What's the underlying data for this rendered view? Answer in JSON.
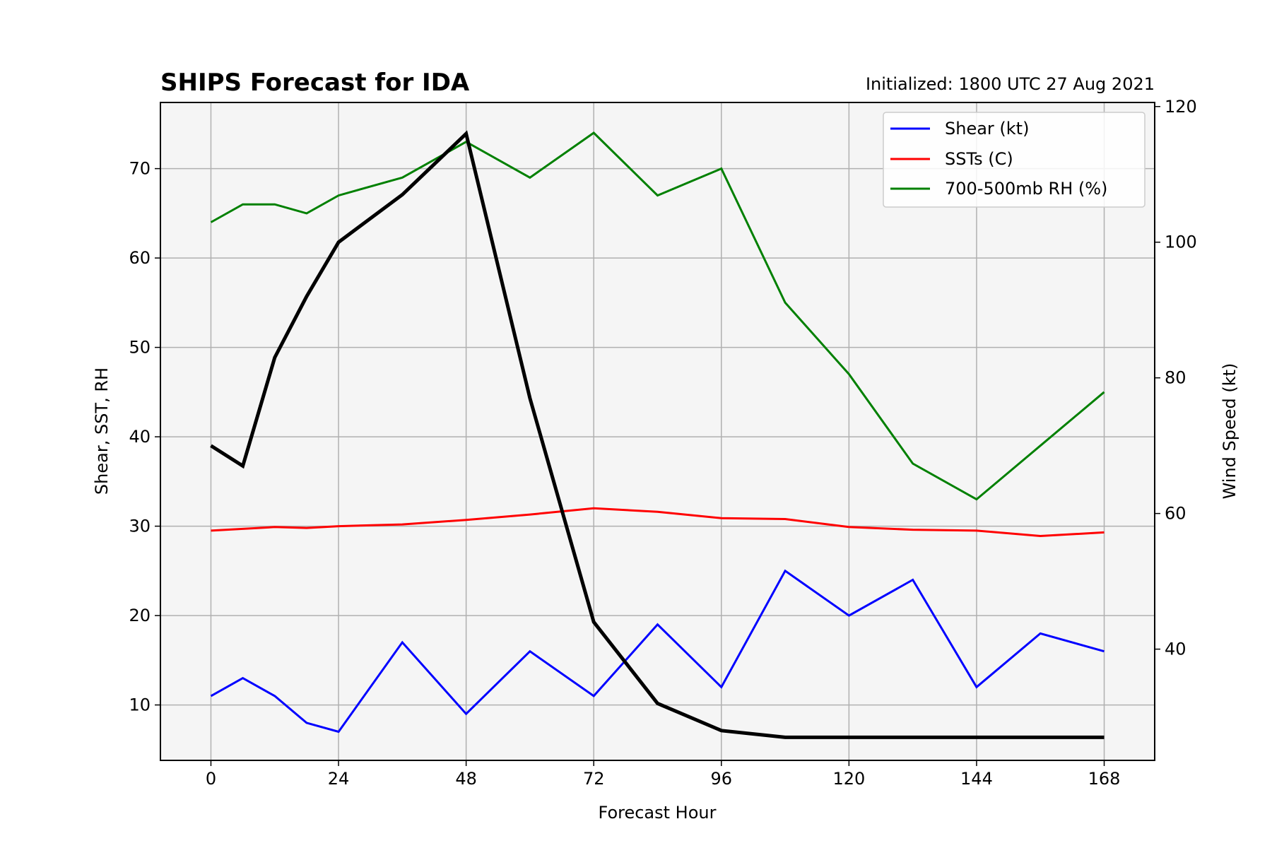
{
  "colors": {
    "plot_background": "#f5f5f5",
    "grid": "#b0b0b0",
    "shear": "#0000ff",
    "sst": "#ff0000",
    "rh": "#008000",
    "wind": "#000000"
  },
  "chart_data": {
    "type": "line",
    "title": "SHIPS Forecast for IDA",
    "subtitle": "Initialized: 1800 UTC 27 Aug 2021",
    "xlabel": "Forecast Hour",
    "ylabel_left": "Shear, SST, RH",
    "ylabel_right": "Wind Speed (kt)",
    "xlim": [
      -9.5,
      177.5
    ],
    "ylim_left": [
      3.8,
      77.4
    ],
    "ylim_right": [
      23.6,
      120.6
    ],
    "xticks": [
      0,
      24,
      48,
      72,
      96,
      120,
      144,
      168
    ],
    "yticks_left": [
      10,
      20,
      30,
      40,
      50,
      60,
      70
    ],
    "yticks_right": [
      40,
      60,
      80,
      100,
      120
    ],
    "grid": true,
    "legend_position": "upper right",
    "series": [
      {
        "name": "Shear (kt)",
        "axis": "left",
        "color_key": "shear",
        "x": [
          0,
          6,
          12,
          18,
          24,
          36,
          48,
          60,
          72,
          84,
          96,
          108,
          120,
          132,
          144,
          156,
          168
        ],
        "values": [
          11,
          13,
          11,
          8,
          7,
          17,
          9,
          16,
          11,
          19,
          12,
          25,
          20,
          24,
          12,
          18,
          16
        ]
      },
      {
        "name": "SSTs (C)",
        "axis": "left",
        "color_key": "sst",
        "x": [
          0,
          6,
          12,
          18,
          24,
          36,
          48,
          60,
          72,
          84,
          96,
          108,
          120,
          132,
          144,
          156,
          168
        ],
        "values": [
          29.5,
          29.7,
          29.9,
          29.8,
          30.0,
          30.2,
          30.7,
          31.3,
          32.0,
          31.6,
          30.9,
          30.8,
          29.9,
          29.6,
          29.5,
          28.9,
          29.3
        ]
      },
      {
        "name": "700-500mb RH (%)",
        "axis": "left",
        "color_key": "rh",
        "x": [
          0,
          6,
          12,
          18,
          24,
          36,
          48,
          60,
          72,
          84,
          96,
          108,
          120,
          132,
          144,
          156,
          168
        ],
        "values": [
          64,
          66,
          66,
          65,
          67,
          69,
          73,
          69,
          74,
          67,
          70,
          55,
          47,
          37,
          33,
          39,
          45
        ]
      },
      {
        "axis": "right",
        "color_key": "wind",
        "x": [
          0,
          6,
          12,
          18,
          24,
          36,
          48,
          60,
          72,
          84,
          96,
          108,
          120,
          132,
          144,
          156,
          168
        ],
        "values": [
          70,
          67,
          83,
          92,
          100,
          107,
          116,
          77,
          44,
          32,
          28,
          27,
          27,
          27,
          27,
          27,
          27
        ]
      }
    ]
  }
}
